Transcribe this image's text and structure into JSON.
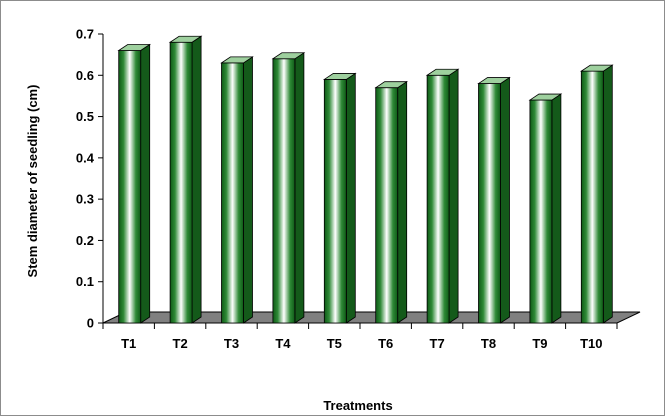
{
  "chart_data": {
    "type": "bar",
    "style": "3d-cylinder-column",
    "categories": [
      "T1",
      "T2",
      "T3",
      "T4",
      "T5",
      "T6",
      "T7",
      "T8",
      "T9",
      "T10"
    ],
    "values": [
      0.66,
      0.68,
      0.63,
      0.64,
      0.59,
      0.57,
      0.6,
      0.58,
      0.54,
      0.61
    ],
    "yticks": [
      "0",
      "0.1",
      "0.2",
      "0.3",
      "0.4",
      "0.5",
      "0.6",
      "0.7"
    ],
    "xlabel": "Treatments",
    "ylabel": "Stem diameter of seedling (cm)",
    "ylim": [
      0,
      0.7
    ],
    "grid": false,
    "legend": "none",
    "colors": {
      "bar_dark": "#0e5a16",
      "bar_mid": "#2f8a37",
      "bar_light": "#ffffff",
      "bar_side": "#145a1a",
      "bar_top": "#9ed09e",
      "floor": "#808080",
      "axis": "#000000"
    }
  }
}
